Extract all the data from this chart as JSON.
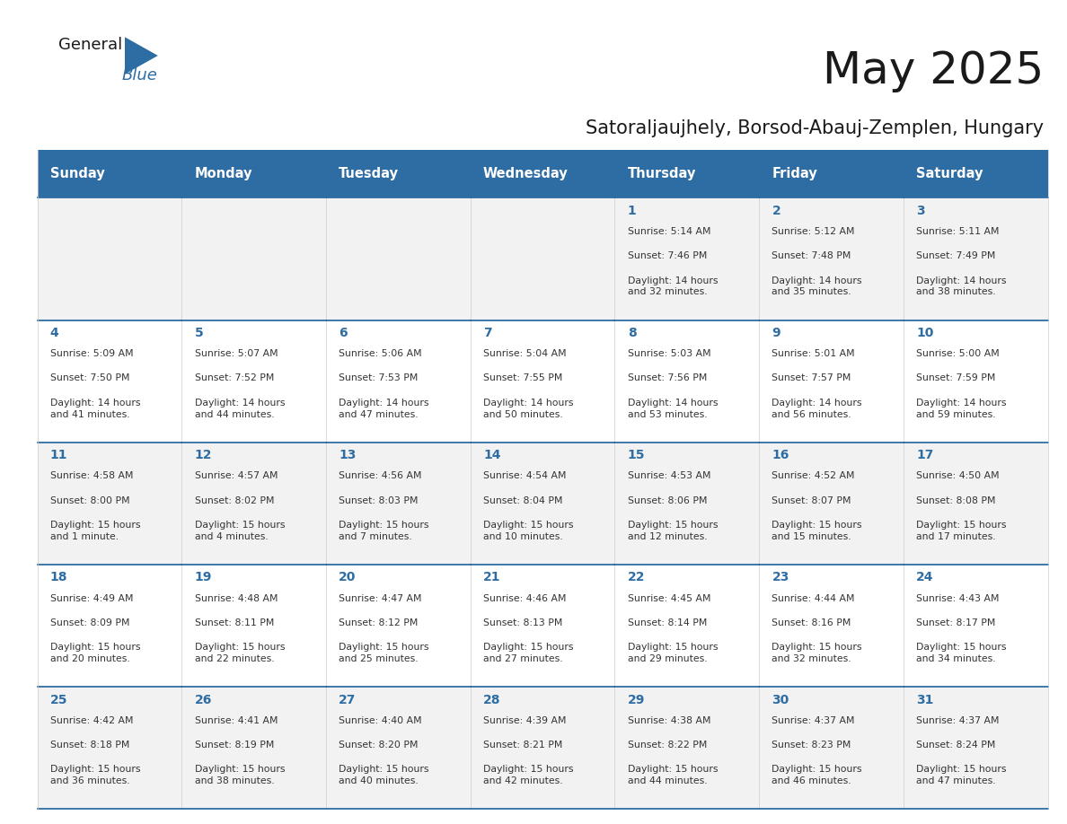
{
  "title": "May 2025",
  "subtitle": "Satoraljaujhely, Borsod-Abauj-Zemplen, Hungary",
  "days_of_week": [
    "Sunday",
    "Monday",
    "Tuesday",
    "Wednesday",
    "Thursday",
    "Friday",
    "Saturday"
  ],
  "header_bg": "#2E6DA4",
  "header_text_color": "#FFFFFF",
  "row_bg_colors": [
    "#F2F2F2",
    "#FFFFFF",
    "#F2F2F2",
    "#FFFFFF",
    "#F2F2F2"
  ],
  "cell_border_color": "#2E6DA4",
  "day_number_color": "#2E6DA4",
  "text_color": "#333333",
  "calendar_data": [
    [
      {
        "day": "",
        "sunrise": "",
        "sunset": "",
        "daylight": ""
      },
      {
        "day": "",
        "sunrise": "",
        "sunset": "",
        "daylight": ""
      },
      {
        "day": "",
        "sunrise": "",
        "sunset": "",
        "daylight": ""
      },
      {
        "day": "",
        "sunrise": "",
        "sunset": "",
        "daylight": ""
      },
      {
        "day": "1",
        "sunrise": "5:14 AM",
        "sunset": "7:46 PM",
        "daylight": "14 hours\nand 32 minutes."
      },
      {
        "day": "2",
        "sunrise": "5:12 AM",
        "sunset": "7:48 PM",
        "daylight": "14 hours\nand 35 minutes."
      },
      {
        "day": "3",
        "sunrise": "5:11 AM",
        "sunset": "7:49 PM",
        "daylight": "14 hours\nand 38 minutes."
      }
    ],
    [
      {
        "day": "4",
        "sunrise": "5:09 AM",
        "sunset": "7:50 PM",
        "daylight": "14 hours\nand 41 minutes."
      },
      {
        "day": "5",
        "sunrise": "5:07 AM",
        "sunset": "7:52 PM",
        "daylight": "14 hours\nand 44 minutes."
      },
      {
        "day": "6",
        "sunrise": "5:06 AM",
        "sunset": "7:53 PM",
        "daylight": "14 hours\nand 47 minutes."
      },
      {
        "day": "7",
        "sunrise": "5:04 AM",
        "sunset": "7:55 PM",
        "daylight": "14 hours\nand 50 minutes."
      },
      {
        "day": "8",
        "sunrise": "5:03 AM",
        "sunset": "7:56 PM",
        "daylight": "14 hours\nand 53 minutes."
      },
      {
        "day": "9",
        "sunrise": "5:01 AM",
        "sunset": "7:57 PM",
        "daylight": "14 hours\nand 56 minutes."
      },
      {
        "day": "10",
        "sunrise": "5:00 AM",
        "sunset": "7:59 PM",
        "daylight": "14 hours\nand 59 minutes."
      }
    ],
    [
      {
        "day": "11",
        "sunrise": "4:58 AM",
        "sunset": "8:00 PM",
        "daylight": "15 hours\nand 1 minute."
      },
      {
        "day": "12",
        "sunrise": "4:57 AM",
        "sunset": "8:02 PM",
        "daylight": "15 hours\nand 4 minutes."
      },
      {
        "day": "13",
        "sunrise": "4:56 AM",
        "sunset": "8:03 PM",
        "daylight": "15 hours\nand 7 minutes."
      },
      {
        "day": "14",
        "sunrise": "4:54 AM",
        "sunset": "8:04 PM",
        "daylight": "15 hours\nand 10 minutes."
      },
      {
        "day": "15",
        "sunrise": "4:53 AM",
        "sunset": "8:06 PM",
        "daylight": "15 hours\nand 12 minutes."
      },
      {
        "day": "16",
        "sunrise": "4:52 AM",
        "sunset": "8:07 PM",
        "daylight": "15 hours\nand 15 minutes."
      },
      {
        "day": "17",
        "sunrise": "4:50 AM",
        "sunset": "8:08 PM",
        "daylight": "15 hours\nand 17 minutes."
      }
    ],
    [
      {
        "day": "18",
        "sunrise": "4:49 AM",
        "sunset": "8:09 PM",
        "daylight": "15 hours\nand 20 minutes."
      },
      {
        "day": "19",
        "sunrise": "4:48 AM",
        "sunset": "8:11 PM",
        "daylight": "15 hours\nand 22 minutes."
      },
      {
        "day": "20",
        "sunrise": "4:47 AM",
        "sunset": "8:12 PM",
        "daylight": "15 hours\nand 25 minutes."
      },
      {
        "day": "21",
        "sunrise": "4:46 AM",
        "sunset": "8:13 PM",
        "daylight": "15 hours\nand 27 minutes."
      },
      {
        "day": "22",
        "sunrise": "4:45 AM",
        "sunset": "8:14 PM",
        "daylight": "15 hours\nand 29 minutes."
      },
      {
        "day": "23",
        "sunrise": "4:44 AM",
        "sunset": "8:16 PM",
        "daylight": "15 hours\nand 32 minutes."
      },
      {
        "day": "24",
        "sunrise": "4:43 AM",
        "sunset": "8:17 PM",
        "daylight": "15 hours\nand 34 minutes."
      }
    ],
    [
      {
        "day": "25",
        "sunrise": "4:42 AM",
        "sunset": "8:18 PM",
        "daylight": "15 hours\nand 36 minutes."
      },
      {
        "day": "26",
        "sunrise": "4:41 AM",
        "sunset": "8:19 PM",
        "daylight": "15 hours\nand 38 minutes."
      },
      {
        "day": "27",
        "sunrise": "4:40 AM",
        "sunset": "8:20 PM",
        "daylight": "15 hours\nand 40 minutes."
      },
      {
        "day": "28",
        "sunrise": "4:39 AM",
        "sunset": "8:21 PM",
        "daylight": "15 hours\nand 42 minutes."
      },
      {
        "day": "29",
        "sunrise": "4:38 AM",
        "sunset": "8:22 PM",
        "daylight": "15 hours\nand 44 minutes."
      },
      {
        "day": "30",
        "sunrise": "4:37 AM",
        "sunset": "8:23 PM",
        "daylight": "15 hours\nand 46 minutes."
      },
      {
        "day": "31",
        "sunrise": "4:37 AM",
        "sunset": "8:24 PM",
        "daylight": "15 hours\nand 47 minutes."
      }
    ]
  ],
  "fig_width": 11.88,
  "fig_height": 9.18,
  "header_font_size": 10.5,
  "day_num_font_size": 10,
  "cell_text_font_size": 7.8,
  "title_font_size": 36,
  "subtitle_font_size": 15
}
